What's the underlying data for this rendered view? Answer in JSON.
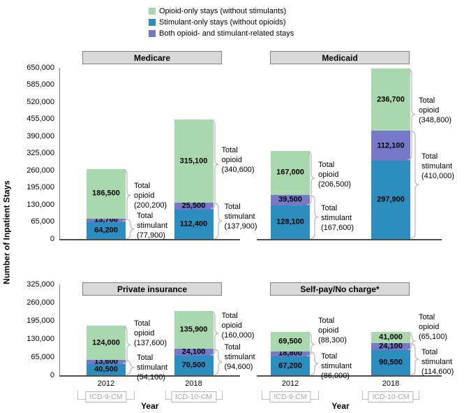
{
  "colors": {
    "header_fill": "#d9d9d9",
    "header_border": "#7f7f7f",
    "brace": "#bfbfbf",
    "icd_text": "#a6a6a6",
    "axis_line": "#4d4d4d",
    "y_axis_line": "#808080"
  },
  "chart_data": {
    "type": "bar",
    "stacked": true,
    "grid": false,
    "legend_position": "top-center",
    "series": [
      {
        "key": "opioid_only",
        "label": "Opioid-only stays (without stimulants)",
        "color": "#a8d8ab"
      },
      {
        "key": "stimulant_only",
        "label": "Stimulant-only stays (without opioids)",
        "color": "#2c8dbf"
      },
      {
        "key": "both",
        "label": "Both opioid- and stimulant-related stays",
        "color": "#7678c8"
      }
    ],
    "stack_order_bottom_to_top": [
      "stimulant_only",
      "both",
      "opioid_only"
    ],
    "y_axis": {
      "label": "Number of Inpatient Stays",
      "tick_step": 65000,
      "top_row_max": 650000,
      "bottom_row_max": 325000
    },
    "x_axis": {
      "label": "Year",
      "categories": [
        "2012",
        "2018"
      ],
      "category_footnotes": [
        "ICD-9-CM",
        "ICD-10-CM"
      ]
    },
    "annotation_labels": {
      "opioid": [
        "Total",
        "opioid"
      ],
      "stimulant": [
        "Total",
        "stimulant"
      ]
    },
    "panels": [
      {
        "title": "Medicare",
        "grid_row": "top",
        "grid_col": "left",
        "bars": [
          {
            "year": "2012",
            "icd": "ICD-9-CM",
            "values": {
              "stimulant_only": 64200,
              "both": 13700,
              "opioid_only": 186500
            },
            "total_opioid": 200200,
            "total_stimulant": 77900
          },
          {
            "year": "2018",
            "icd": "ICD-10-CM",
            "values": {
              "stimulant_only": 112400,
              "both": 25500,
              "opioid_only": 315100
            },
            "total_opioid": 340600,
            "total_stimulant": 137900
          }
        ]
      },
      {
        "title": "Medicaid",
        "grid_row": "top",
        "grid_col": "right",
        "bars": [
          {
            "year": "2012",
            "icd": "ICD-9-CM",
            "values": {
              "stimulant_only": 128100,
              "both": 39500,
              "opioid_only": 167000
            },
            "total_opioid": 206500,
            "total_stimulant": 167600
          },
          {
            "year": "2018",
            "icd": "ICD-10-CM",
            "values": {
              "stimulant_only": 297900,
              "both": 112100,
              "opioid_only": 236700
            },
            "total_opioid": 348800,
            "total_stimulant": 410000
          }
        ]
      },
      {
        "title": "Private insurance",
        "grid_row": "bottom",
        "grid_col": "left",
        "bars": [
          {
            "year": "2012",
            "icd": "ICD-9-CM",
            "values": {
              "stimulant_only": 40500,
              "both": 13600,
              "opioid_only": 124000
            },
            "total_opioid": 137600,
            "total_stimulant": 54100
          },
          {
            "year": "2018",
            "icd": "ICD-10-CM",
            "values": {
              "stimulant_only": 70500,
              "both": 24100,
              "opioid_only": 135900
            },
            "total_opioid": 160000,
            "total_stimulant": 94600
          }
        ]
      },
      {
        "title": "Self-pay/No charge*",
        "grid_row": "bottom",
        "grid_col": "right",
        "bars": [
          {
            "year": "2012",
            "icd": "ICD-9-CM",
            "values": {
              "stimulant_only": 67200,
              "both": 18800,
              "opioid_only": 69500
            },
            "total_opioid": 88300,
            "total_stimulant": 86000
          },
          {
            "year": "2018",
            "icd": "ICD-10-CM",
            "values": {
              "stimulant_only": 90500,
              "both": 24100,
              "opioid_only": 41000
            },
            "total_opioid": 65100,
            "total_stimulant": 114600
          }
        ]
      }
    ]
  }
}
